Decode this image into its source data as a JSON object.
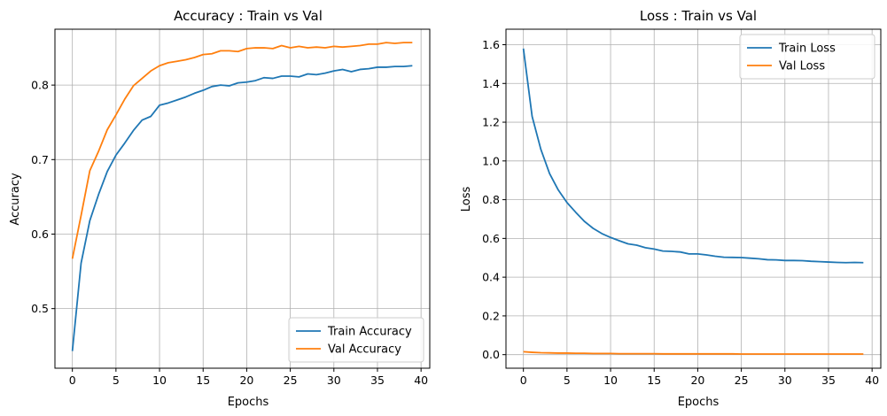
{
  "chart_data": [
    {
      "type": "line",
      "title": "Accuracy : Train vs Val",
      "xlabel": "Epochs",
      "ylabel": "Accuracy",
      "xlim": [
        -2,
        41
      ],
      "ylim": [
        0.42,
        0.875
      ],
      "xticks": [
        0,
        5,
        10,
        15,
        20,
        25,
        30,
        35,
        40
      ],
      "yticks": [
        0.5,
        0.6,
        0.7,
        0.8
      ],
      "ytick_labels": [
        "0.5",
        "0.6",
        "0.7",
        "0.8"
      ],
      "grid": true,
      "legend_position": "lower-right",
      "x": [
        0,
        1,
        2,
        3,
        4,
        5,
        6,
        7,
        8,
        9,
        10,
        11,
        12,
        13,
        14,
        15,
        16,
        17,
        18,
        19,
        20,
        21,
        22,
        23,
        24,
        25,
        26,
        27,
        28,
        29,
        30,
        31,
        32,
        33,
        34,
        35,
        36,
        37,
        38,
        39
      ],
      "series": [
        {
          "name": "Train Accuracy",
          "color": "#1f77b4",
          "values": [
            0.443,
            0.561,
            0.618,
            0.653,
            0.684,
            0.706,
            0.722,
            0.739,
            0.753,
            0.758,
            0.773,
            0.776,
            0.78,
            0.784,
            0.789,
            0.793,
            0.798,
            0.8,
            0.799,
            0.803,
            0.804,
            0.806,
            0.81,
            0.809,
            0.812,
            0.812,
            0.811,
            0.815,
            0.814,
            0.816,
            0.819,
            0.821,
            0.818,
            0.821,
            0.822,
            0.824,
            0.824,
            0.825,
            0.825,
            0.826
          ]
        },
        {
          "name": "Val Accuracy",
          "color": "#ff7f0e",
          "values": [
            0.567,
            0.625,
            0.685,
            0.711,
            0.74,
            0.76,
            0.781,
            0.799,
            0.809,
            0.819,
            0.826,
            0.83,
            0.832,
            0.834,
            0.837,
            0.841,
            0.842,
            0.846,
            0.846,
            0.845,
            0.849,
            0.85,
            0.85,
            0.849,
            0.853,
            0.85,
            0.852,
            0.85,
            0.851,
            0.85,
            0.852,
            0.851,
            0.852,
            0.853,
            0.855,
            0.855,
            0.857,
            0.856,
            0.857,
            0.857
          ]
        }
      ]
    },
    {
      "type": "line",
      "title": "Loss : Train vs Val",
      "xlabel": "Epochs",
      "ylabel": "Loss",
      "xlim": [
        -2,
        41
      ],
      "ylim": [
        -0.07,
        1.68
      ],
      "xticks": [
        0,
        5,
        10,
        15,
        20,
        25,
        30,
        35,
        40
      ],
      "yticks": [
        0.0,
        0.2,
        0.4,
        0.6,
        0.8,
        1.0,
        1.2,
        1.4,
        1.6
      ],
      "ytick_labels": [
        "0.0",
        "0.2",
        "0.4",
        "0.6",
        "0.8",
        "1.0",
        "1.2",
        "1.4",
        "1.6"
      ],
      "grid": true,
      "legend_position": "upper-right",
      "x": [
        0,
        1,
        2,
        3,
        4,
        5,
        6,
        7,
        8,
        9,
        10,
        11,
        12,
        13,
        14,
        15,
        16,
        17,
        18,
        19,
        20,
        21,
        22,
        23,
        24,
        25,
        26,
        27,
        28,
        29,
        30,
        31,
        32,
        33,
        34,
        35,
        36,
        37,
        38,
        39
      ],
      "series": [
        {
          "name": "Train Loss",
          "color": "#1f77b4",
          "values": [
            1.58,
            1.23,
            1.06,
            0.935,
            0.85,
            0.785,
            0.735,
            0.688,
            0.652,
            0.625,
            0.605,
            0.588,
            0.572,
            0.565,
            0.552,
            0.545,
            0.535,
            0.533,
            0.53,
            0.52,
            0.52,
            0.515,
            0.508,
            0.503,
            0.502,
            0.501,
            0.498,
            0.495,
            0.49,
            0.489,
            0.486,
            0.486,
            0.485,
            0.482,
            0.48,
            0.478,
            0.476,
            0.475,
            0.476,
            0.475
          ]
        },
        {
          "name": "Val Loss",
          "color": "#ff7f0e",
          "values": [
            0.015,
            0.012,
            0.01,
            0.009,
            0.008,
            0.008,
            0.007,
            0.007,
            0.006,
            0.006,
            0.006,
            0.005,
            0.005,
            0.005,
            0.005,
            0.005,
            0.004,
            0.004,
            0.004,
            0.004,
            0.004,
            0.004,
            0.004,
            0.004,
            0.004,
            0.003,
            0.003,
            0.003,
            0.003,
            0.003,
            0.003,
            0.003,
            0.003,
            0.003,
            0.003,
            0.003,
            0.003,
            0.003,
            0.003,
            0.003
          ]
        }
      ]
    }
  ]
}
